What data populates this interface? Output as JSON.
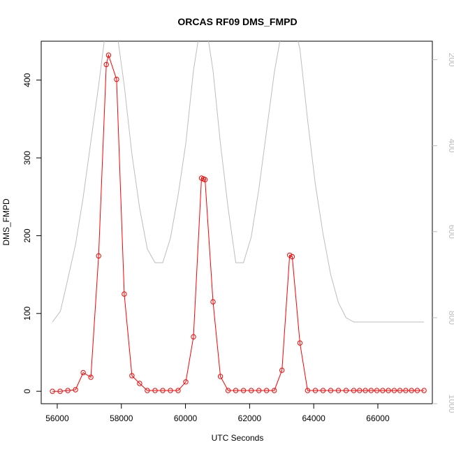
{
  "chart_data": {
    "type": "line",
    "title": "ORCAS RF09 DMS_FMPD",
    "xlabel": "UTC Seconds",
    "ylabel": "DMS_FMPD",
    "xlim": [
      55500,
      67700
    ],
    "ylim": [
      -16,
      450
    ],
    "y2lim": [
      1000,
      157
    ],
    "x_ticks": [
      56000,
      58000,
      60000,
      62000,
      64000,
      66000
    ],
    "y_ticks": [
      0,
      100,
      200,
      300,
      400
    ],
    "y2_ticks": [
      200,
      400,
      600,
      800,
      1000
    ],
    "grid": false,
    "series": [
      {
        "color": "#ff0000",
        "markers": "open-circle",
        "x": [
          55850,
          56090,
          56330,
          56570,
          56810,
          57050,
          57290,
          57530,
          57600,
          57850,
          58090,
          58330,
          58570,
          58810,
          59050,
          59290,
          59530,
          59770,
          60010,
          60250,
          60500,
          60560,
          60610,
          60860,
          61090,
          61330,
          61570,
          61810,
          62050,
          62290,
          62530,
          62770,
          63010,
          63250,
          63330,
          63570,
          63810,
          64050,
          64290,
          64530,
          64770,
          65010,
          65250,
          65430,
          65610,
          65790,
          65970,
          66150,
          66330,
          66510,
          66690,
          66870,
          67050,
          67230,
          67440
        ],
        "y": [
          0,
          0,
          1,
          2,
          24,
          18,
          174,
          420,
          432,
          401,
          125,
          20,
          10,
          1,
          1,
          1,
          1,
          1,
          12,
          70,
          274,
          273,
          272,
          115,
          19,
          1,
          1,
          1,
          1,
          1,
          1,
          1,
          27,
          175,
          173,
          62,
          1,
          1,
          1,
          1,
          1,
          1,
          1,
          1,
          1,
          1,
          1,
          1,
          1,
          1,
          1,
          1,
          1,
          1,
          1
        ]
      },
      {
        "color": "#bdbdbd",
        "axis": "right",
        "x": [
          55850,
          56100,
          56330,
          56570,
          56810,
          57050,
          57290,
          57530,
          57600,
          57850,
          58090,
          58330,
          58570,
          58810,
          59050,
          59290,
          59530,
          59770,
          60010,
          60250,
          60500,
          60560,
          60610,
          60860,
          61090,
          61330,
          61570,
          61810,
          62050,
          62290,
          62530,
          62770,
          63010,
          63250,
          63330,
          63570,
          63810,
          64050,
          64290,
          64530,
          64770,
          65010,
          65250,
          65500,
          66000,
          66500,
          67000,
          67440
        ],
        "y": [
          810,
          785,
          710,
          630,
          520,
          390,
          260,
          120,
          110,
          130,
          260,
          420,
          545,
          640,
          672,
          672,
          615,
          515,
          395,
          225,
          105,
          95,
          105,
          225,
          395,
          545,
          672,
          672,
          612,
          500,
          365,
          230,
          130,
          100,
          100,
          175,
          340,
          490,
          605,
          700,
          765,
          800,
          810,
          810,
          810,
          810,
          810,
          810
        ]
      }
    ]
  }
}
